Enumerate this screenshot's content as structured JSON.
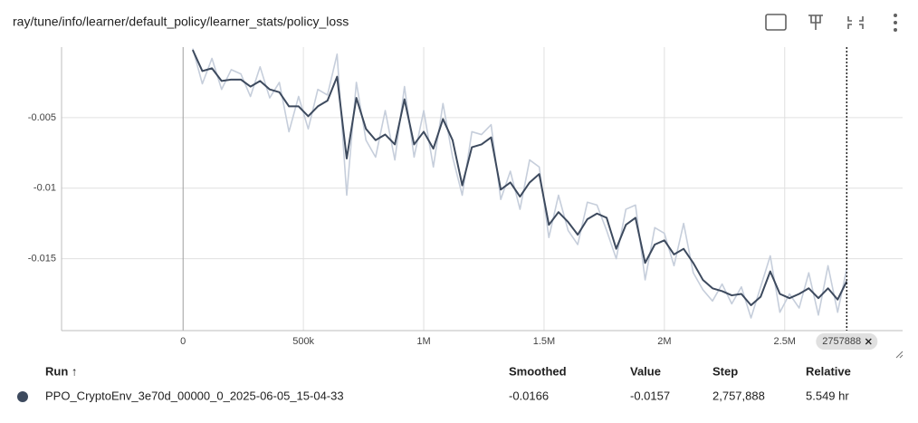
{
  "chart_data": {
    "type": "line",
    "title": "ray/tune/info/learner/default_policy/learner_stats/policy_loss",
    "x": [
      40000,
      80000,
      120000,
      160000,
      200000,
      240000,
      280000,
      320000,
      360000,
      400000,
      440000,
      480000,
      520000,
      560000,
      600000,
      640000,
      680000,
      720000,
      760000,
      800000,
      840000,
      880000,
      920000,
      960000,
      1000000,
      1040000,
      1080000,
      1120000,
      1160000,
      1200000,
      1240000,
      1280000,
      1320000,
      1360000,
      1400000,
      1440000,
      1480000,
      1520000,
      1560000,
      1600000,
      1640000,
      1680000,
      1720000,
      1760000,
      1800000,
      1840000,
      1880000,
      1920000,
      1960000,
      2000000,
      2040000,
      2080000,
      2120000,
      2160000,
      2200000,
      2240000,
      2280000,
      2320000,
      2360000,
      2400000,
      2440000,
      2480000,
      2520000,
      2560000,
      2600000,
      2640000,
      2680000,
      2720000,
      2757888
    ],
    "series": [
      {
        "name": "PPO_CryptoEnv_3e70d_00000_0_2025-06-05_15-04-33",
        "color": "#3d4a5e",
        "raw_color": "#c6cedb",
        "values": [
          -0.0002,
          -0.0017,
          -0.0015,
          -0.0024,
          -0.0023,
          -0.0023,
          -0.0028,
          -0.0024,
          -0.003,
          -0.0032,
          -0.0042,
          -0.0042,
          -0.0049,
          -0.0042,
          -0.0038,
          -0.0021,
          -0.0079,
          -0.0036,
          -0.0058,
          -0.0066,
          -0.0062,
          -0.0069,
          -0.0037,
          -0.0069,
          -0.006,
          -0.0072,
          -0.0051,
          -0.0066,
          -0.0098,
          -0.0071,
          -0.0069,
          -0.0064,
          -0.0101,
          -0.0096,
          -0.0106,
          -0.0096,
          -0.009,
          -0.0126,
          -0.0117,
          -0.0124,
          -0.0133,
          -0.0122,
          -0.0118,
          -0.0121,
          -0.0143,
          -0.0126,
          -0.0121,
          -0.0153,
          -0.014,
          -0.0137,
          -0.0147,
          -0.0143,
          -0.0153,
          -0.0165,
          -0.0171,
          -0.0173,
          -0.0176,
          -0.0175,
          -0.0183,
          -0.0177,
          -0.0159,
          -0.0175,
          -0.0178,
          -0.0175,
          -0.0171,
          -0.0178,
          -0.0171,
          -0.0179,
          -0.0166
        ],
        "raw_values": [
          -0.0001,
          -0.0026,
          -0.0008,
          -0.003,
          -0.0016,
          -0.0019,
          -0.0035,
          -0.0014,
          -0.0036,
          -0.0025,
          -0.006,
          -0.0035,
          -0.0058,
          -0.003,
          -0.0034,
          -0.0005,
          -0.0105,
          -0.0025,
          -0.0066,
          -0.0078,
          -0.0045,
          -0.008,
          -0.0028,
          -0.0078,
          -0.0045,
          -0.0085,
          -0.004,
          -0.0078,
          -0.0105,
          -0.006,
          -0.0062,
          -0.0055,
          -0.0108,
          -0.0088,
          -0.0115,
          -0.008,
          -0.0085,
          -0.0135,
          -0.0105,
          -0.013,
          -0.014,
          -0.011,
          -0.0112,
          -0.013,
          -0.015,
          -0.0115,
          -0.0112,
          -0.0165,
          -0.0128,
          -0.0132,
          -0.0155,
          -0.0125,
          -0.016,
          -0.0172,
          -0.018,
          -0.0168,
          -0.0182,
          -0.017,
          -0.0192,
          -0.017,
          -0.0148,
          -0.0188,
          -0.0175,
          -0.0185,
          -0.016,
          -0.019,
          -0.0155,
          -0.0188,
          -0.0157
        ]
      }
    ],
    "xlim": [
      -505000,
      2990000
    ],
    "ylim": [
      -0.0201,
      0
    ],
    "xticks": [
      0,
      {
        "value": 500000,
        "label": "500k"
      },
      {
        "value": 1000000,
        "label": "1M"
      },
      {
        "value": 1500000,
        "label": "1.5M"
      },
      {
        "value": 2000000,
        "label": "2M"
      },
      {
        "value": 2500000,
        "label": "2.5M"
      }
    ],
    "yticks": [
      -0.015,
      -0.01,
      -0.005
    ],
    "grid": true
  },
  "table": {
    "headers": [
      "Run ↑",
      "Smoothed",
      "Value",
      "Step",
      "Relative"
    ],
    "rows": [
      {
        "smoothed": -0.0166,
        "value": -0.0157,
        "step": "2,757,888",
        "relative": "5.549 hr"
      }
    ]
  }
}
